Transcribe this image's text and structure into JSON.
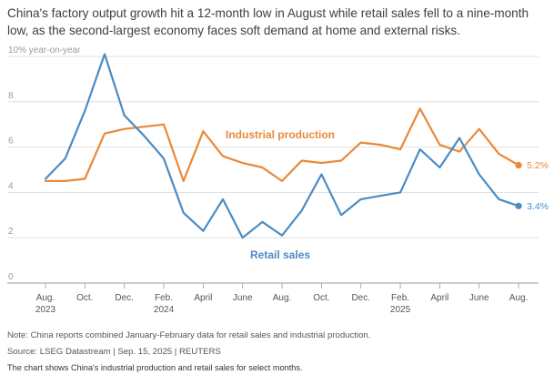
{
  "title": "China's factory output growth hit a 12-month low in August while retail sales fell to a nine-month low, as the second-largest economy faces soft demand at home and external risks.",
  "note": "Note: China reports combined January-February data for retail sales and industrial production.",
  "source": "Source: LSEG Datastream | Sep. 15, 2025 | REUTERS",
  "caption": "The chart shows China's industrial production and retail sales for select months.",
  "chart_data": {
    "type": "line",
    "ylabel_top": "10% year-on-year",
    "ylim": [
      0,
      10
    ],
    "yticks": [
      0,
      2,
      4,
      6,
      8,
      10
    ],
    "ytick_labels": [
      "0",
      "2",
      "4",
      "6",
      "8",
      "10% year-on-year"
    ],
    "grid": true,
    "x_labels": [
      {
        "index": 0,
        "label": "Aug.",
        "sub": "2023"
      },
      {
        "index": 2,
        "label": "Oct.",
        "sub": ""
      },
      {
        "index": 4,
        "label": "Dec.",
        "sub": ""
      },
      {
        "index": 6,
        "label": "Feb.",
        "sub": "2024"
      },
      {
        "index": 8,
        "label": "April",
        "sub": ""
      },
      {
        "index": 10,
        "label": "June",
        "sub": ""
      },
      {
        "index": 12,
        "label": "Aug.",
        "sub": ""
      },
      {
        "index": 14,
        "label": "Oct.",
        "sub": ""
      },
      {
        "index": 16,
        "label": "Dec.",
        "sub": ""
      },
      {
        "index": 18,
        "label": "Feb.",
        "sub": "2025"
      },
      {
        "index": 20,
        "label": "April",
        "sub": ""
      },
      {
        "index": 22,
        "label": "June",
        "sub": ""
      },
      {
        "index": 24,
        "label": "Aug.",
        "sub": ""
      }
    ],
    "series": [
      {
        "name": "Industrial production",
        "color": "#e8893a",
        "end_label": "5.2%",
        "values": [
          4.5,
          4.5,
          4.6,
          6.6,
          6.8,
          6.9,
          7.0,
          4.5,
          6.7,
          5.6,
          5.3,
          5.1,
          4.5,
          5.4,
          5.3,
          5.4,
          6.2,
          6.1,
          5.9,
          7.7,
          6.1,
          5.8,
          6.8,
          5.7,
          5.2
        ]
      },
      {
        "name": "Retail sales",
        "color": "#4a8cc4",
        "end_label": "3.4%",
        "values": [
          4.6,
          5.5,
          7.6,
          10.1,
          7.4,
          6.5,
          5.5,
          3.1,
          2.3,
          3.7,
          2.0,
          2.7,
          2.1,
          3.2,
          4.8,
          3.0,
          3.7,
          3.85,
          4.0,
          5.9,
          5.1,
          6.4,
          4.8,
          3.7,
          3.4
        ]
      }
    ]
  }
}
